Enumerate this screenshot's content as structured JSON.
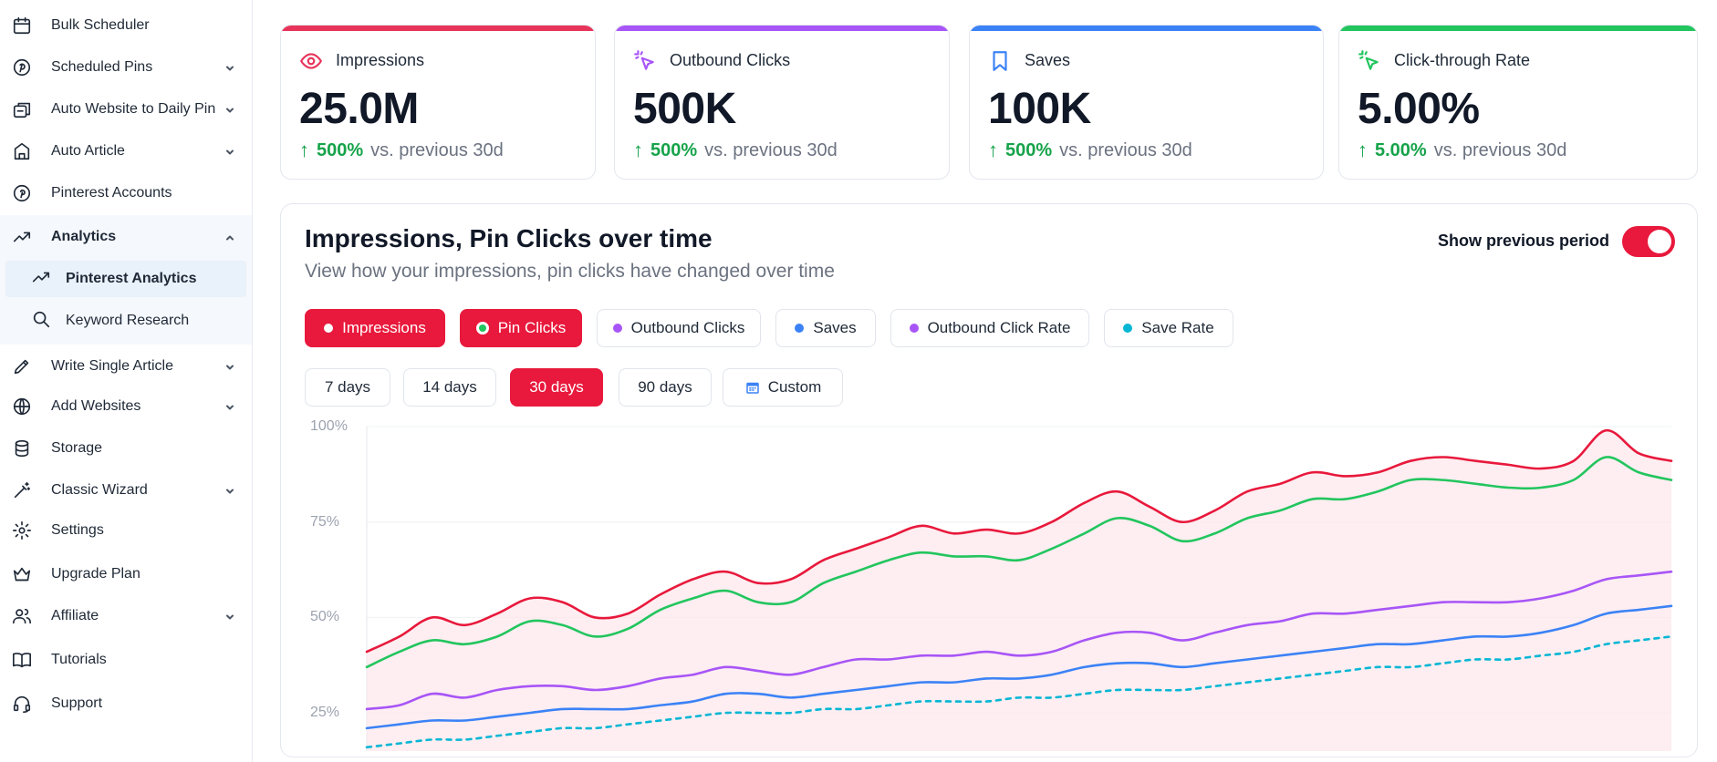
{
  "sidebar": {
    "items": [
      {
        "label": "Bulk Scheduler",
        "icon": "calendar-icon",
        "chevron": false
      },
      {
        "label": "Scheduled Pins",
        "icon": "pin-circle-icon",
        "chevron": true
      },
      {
        "label": "Auto Website to Daily Pin",
        "icon": "auto-post-icon",
        "chevron": true
      },
      {
        "label": "Auto Article",
        "icon": "auto-article-icon",
        "chevron": true
      },
      {
        "label": "Pinterest Accounts",
        "icon": "pinterest-icon",
        "chevron": false
      },
      {
        "label": "Analytics",
        "icon": "analytics-trend-icon",
        "chevron": true,
        "expanded": true
      },
      {
        "label": "Write Single Article",
        "icon": "pencil-icon",
        "chevron": true
      },
      {
        "label": "Add Websites",
        "icon": "globe-icon",
        "chevron": true
      },
      {
        "label": "Storage",
        "icon": "database-icon",
        "chevron": false
      },
      {
        "label": "Classic Wizard",
        "icon": "magic-wand-icon",
        "chevron": true
      },
      {
        "label": "Settings",
        "icon": "gear-icon",
        "chevron": false
      },
      {
        "label": "Upgrade Plan",
        "icon": "crown-icon",
        "chevron": false
      },
      {
        "label": "Affiliate",
        "icon": "users-icon",
        "chevron": true
      },
      {
        "label": "Tutorials",
        "icon": "book-icon",
        "chevron": false
      },
      {
        "label": "Support",
        "icon": "headset-icon",
        "chevron": false
      }
    ],
    "analytics_sub": [
      {
        "label": "Pinterest Analytics",
        "icon": "trend-up-icon",
        "selected": true
      },
      {
        "label": "Keyword Research",
        "icon": "search-icon",
        "selected": false
      }
    ]
  },
  "cards": [
    {
      "label": "Impressions",
      "value": "25.0M",
      "delta": "500%",
      "suffix": "vs. previous 30d",
      "color": "#e8345a",
      "icon": "eye-icon"
    },
    {
      "label": "Outbound Clicks",
      "value": "500K",
      "delta": "500%",
      "suffix": "vs. previous 30d",
      "color": "#a855f7",
      "icon": "cursor-click-icon"
    },
    {
      "label": "Saves",
      "value": "100K",
      "delta": "500%",
      "suffix": "vs. previous 30d",
      "color": "#3b82f6",
      "icon": "bookmark-icon"
    },
    {
      "label": "Click-through Rate",
      "value": "5.00%",
      "delta": "5.00%",
      "suffix": "vs. previous 30d",
      "color": "#22c55e",
      "icon": "cursor-click-icon"
    }
  ],
  "panel": {
    "title": "Impressions, Pin Clicks over time",
    "subtitle": "View how your impressions, pin clicks have changed over time",
    "toggle_label": "Show previous period",
    "toggle_on": true
  },
  "metrics": [
    {
      "label": "Impressions",
      "color": "#e8193c",
      "on": true
    },
    {
      "label": "Pin Clicks",
      "color": "#22c55e",
      "on": true
    },
    {
      "label": "Outbound Clicks",
      "color": "#a855f7",
      "on": false
    },
    {
      "label": "Saves",
      "color": "#3b82f6",
      "on": false
    },
    {
      "label": "Outbound Click Rate",
      "color": "#a855f7",
      "on": false
    },
    {
      "label": "Save Rate",
      "color": "#06b6d4",
      "on": false
    }
  ],
  "ranges": [
    {
      "label": "7 days",
      "on": false
    },
    {
      "label": "14 days",
      "on": false
    },
    {
      "label": "30 days",
      "on": true
    },
    {
      "label": "90 days",
      "on": false
    },
    {
      "label": "Custom",
      "on": false,
      "icon": "calendar-icon"
    }
  ],
  "chart_data": {
    "type": "line",
    "title": "",
    "xlabel": "",
    "ylabel": "",
    "ylim": [
      15,
      100
    ],
    "yticks": [
      "100%",
      "75%",
      "50%",
      "25%"
    ],
    "ytick_values": [
      100,
      75,
      50,
      25
    ],
    "grid": true,
    "series": [
      {
        "color": "#e8193c",
        "fill": "#fde8ec",
        "dashed": false,
        "values": [
          41,
          45,
          50,
          48,
          51,
          55,
          54,
          50,
          51,
          56,
          60,
          62,
          59,
          60,
          65,
          68,
          71,
          74,
          72,
          73,
          72,
          75,
          80,
          83,
          79,
          75,
          78,
          83,
          85,
          88,
          87,
          88,
          91,
          92,
          91,
          90,
          89,
          91,
          99,
          93,
          91
        ]
      },
      {
        "color": "#22c55e",
        "dashed": false,
        "values": [
          37,
          41,
          44,
          43,
          45,
          49,
          48,
          45,
          47,
          52,
          55,
          57,
          54,
          54,
          59,
          62,
          65,
          67,
          66,
          66,
          65,
          68,
          72,
          76,
          74,
          70,
          72,
          76,
          78,
          81,
          81,
          83,
          86,
          86,
          85,
          84,
          84,
          86,
          92,
          88,
          86
        ]
      },
      {
        "color": "#a855f7",
        "dashed": false,
        "values": [
          26,
          27,
          30,
          29,
          31,
          32,
          32,
          31,
          32,
          34,
          35,
          37,
          36,
          35,
          37,
          39,
          39,
          40,
          40,
          41,
          40,
          41,
          44,
          46,
          46,
          44,
          46,
          48,
          49,
          51,
          51,
          52,
          53,
          54,
          54,
          54,
          55,
          57,
          60,
          61,
          62
        ]
      },
      {
        "color": "#3b82f6",
        "dashed": false,
        "values": [
          21,
          22,
          23,
          23,
          24,
          25,
          26,
          26,
          26,
          27,
          28,
          30,
          30,
          29,
          30,
          31,
          32,
          33,
          33,
          34,
          34,
          35,
          37,
          38,
          38,
          37,
          38,
          39,
          40,
          41,
          42,
          43,
          43,
          44,
          45,
          45,
          46,
          48,
          51,
          52,
          53
        ]
      },
      {
        "color": "#06b6d4",
        "dashed": true,
        "values": [
          16,
          17,
          18,
          18,
          19,
          20,
          21,
          21,
          22,
          23,
          24,
          25,
          25,
          25,
          26,
          26,
          27,
          28,
          28,
          28,
          29,
          29,
          30,
          31,
          31,
          31,
          32,
          33,
          34,
          35,
          36,
          37,
          37,
          38,
          39,
          39,
          40,
          41,
          43,
          44,
          45
        ]
      }
    ]
  }
}
